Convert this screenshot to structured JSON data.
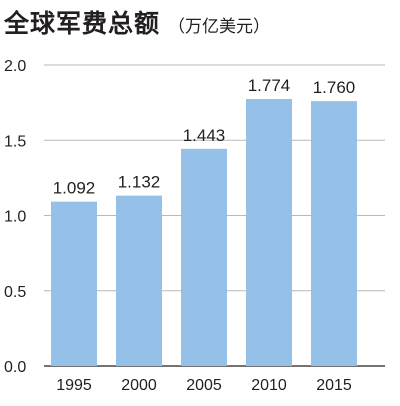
{
  "chart_data": {
    "type": "bar",
    "title": "全球军费总额",
    "subtitle": "（万亿美元）",
    "categories": [
      "1995",
      "2000",
      "2005",
      "2010",
      "2015"
    ],
    "values": [
      1.092,
      1.132,
      1.443,
      1.774,
      1.76
    ],
    "value_labels": [
      "1.092",
      "1.132",
      "1.443",
      "1.774",
      "1.760"
    ],
    "yticks": [
      "0.0",
      "0.5",
      "1.0",
      "1.5",
      "2.0"
    ],
    "ylim": [
      0,
      2.0
    ],
    "grid": true,
    "bar_color": "#95c0e7",
    "grid_color": "#b9b9b9"
  }
}
